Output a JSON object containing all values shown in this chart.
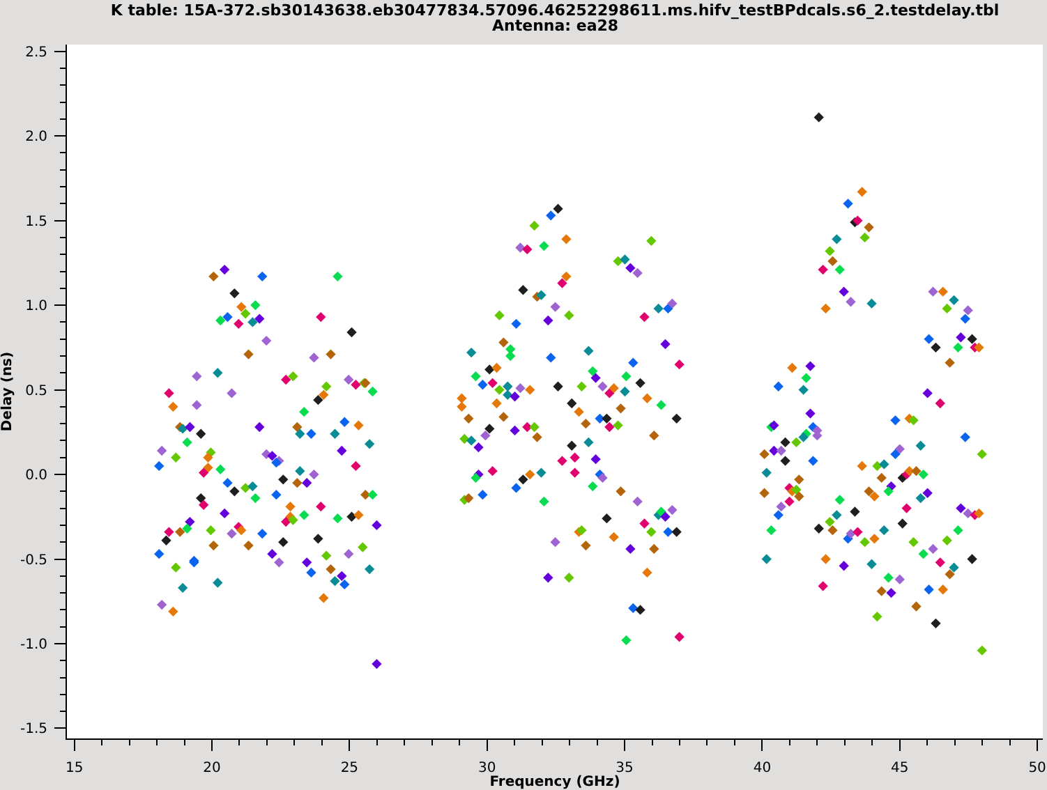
{
  "chart_data": {
    "type": "scatter",
    "title": "K table: 15A-372.sb30143638.eb30477834.57096.46252298611.ms.hifv_testBPdcals.s6_2.testdelay.tbl",
    "subtitle": "Antenna: ea28",
    "xlabel": "Frequency (GHz)",
    "ylabel": "Delay (ns)",
    "marker": "diamond",
    "xlim": [
      14.73,
      50.2
    ],
    "ylim": [
      -1.56,
      2.54
    ],
    "xticks": [
      15,
      {
        "value": 16,
        "label": null
      },
      {
        "value": 17,
        "label": null
      },
      {
        "value": 18,
        "label": null
      },
      {
        "value": 19,
        "label": null
      },
      20,
      {
        "value": 21,
        "label": null
      },
      {
        "value": 22,
        "label": null
      },
      {
        "value": 23,
        "label": null
      },
      {
        "value": 24,
        "label": null
      },
      25,
      {
        "value": 26,
        "label": null
      },
      {
        "value": 27,
        "label": null
      },
      {
        "value": 28,
        "label": null
      },
      {
        "value": 29,
        "label": null
      },
      30,
      {
        "value": 31,
        "label": null
      },
      {
        "value": 32,
        "label": null
      },
      {
        "value": 33,
        "label": null
      },
      {
        "value": 34,
        "label": null
      },
      35,
      {
        "value": 36,
        "label": null
      },
      {
        "value": 37,
        "label": null
      },
      {
        "value": 38,
        "label": null
      },
      {
        "value": 39,
        "label": null
      },
      40,
      {
        "value": 41,
        "label": null
      },
      {
        "value": 42,
        "label": null
      },
      {
        "value": 43,
        "label": null
      },
      {
        "value": 44,
        "label": null
      },
      45,
      {
        "value": 46,
        "label": null
      },
      {
        "value": 47,
        "label": null
      },
      {
        "value": 48,
        "label": null
      },
      {
        "value": 49,
        "label": null
      },
      50
    ],
    "yticks": [
      -1.5,
      {
        "value": -1.4,
        "label": null
      },
      {
        "value": -1.3,
        "label": null
      },
      {
        "value": -1.2,
        "label": null
      },
      {
        "value": -1.1,
        "label": null
      },
      {
        "value": -1,
        "label": "-1.0"
      },
      {
        "value": -0.9,
        "label": null
      },
      {
        "value": -0.8,
        "label": null
      },
      {
        "value": -0.7,
        "label": null
      },
      {
        "value": -0.6,
        "label": null
      },
      -0.5,
      {
        "value": -0.4,
        "label": null
      },
      {
        "value": -0.3,
        "label": null
      },
      {
        "value": -0.2,
        "label": null
      },
      {
        "value": -0.1,
        "label": null
      },
      {
        "value": 0,
        "label": "0.0"
      },
      {
        "value": 0.1,
        "label": null
      },
      {
        "value": 0.2,
        "label": null
      },
      {
        "value": 0.3,
        "label": null
      },
      {
        "value": 0.4,
        "label": null
      },
      0.5,
      {
        "value": 0.6,
        "label": null
      },
      {
        "value": 0.7,
        "label": null
      },
      {
        "value": 0.8,
        "label": null
      },
      {
        "value": 0.9,
        "label": null
      },
      {
        "value": 1,
        "label": "1.0"
      },
      {
        "value": 1.1,
        "label": null
      },
      {
        "value": 1.2,
        "label": null
      },
      {
        "value": 1.3,
        "label": null
      },
      {
        "value": 1.4,
        "label": null
      },
      1.5,
      {
        "value": 1.6,
        "label": null
      },
      {
        "value": 1.7,
        "label": null
      },
      {
        "value": 1.8,
        "label": null
      },
      {
        "value": 1.9,
        "label": null
      },
      {
        "value": 2,
        "label": "2.0"
      },
      {
        "value": 2.1,
        "label": null
      },
      {
        "value": 2.2,
        "label": null
      },
      {
        "value": 2.3,
        "label": null
      },
      {
        "value": 2.4,
        "label": null
      },
      2.5
    ],
    "x": [
      20.06,
      20.46,
      21.83,
      24.57,
      20.82,
      21.07,
      21.58,
      21.22,
      20.31,
      20.57,
      20.97,
      21.48,
      21.73,
      23.96,
      25.08,
      21.98,
      21.33,
      23.71,
      24.32,
      19.45,
      20.21,
      22.69,
      22.95,
      24.16,
      24.97,
      25.23,
      25.53,
      25.58,
      25.84,
      18.44,
      20.72,
      18.59,
      19.45,
      24.06,
      23.86,
      23.35,
      18.84,
      18.94,
      19.2,
      19.6,
      21.73,
      23.1,
      23.2,
      23.61,
      24.47,
      24.82,
      25.33,
      25.73,
      24.72,
      18.18,
      18.08,
      18.69,
      19.1,
      19.96,
      19.86,
      19.86,
      19.7,
      20.31,
      21.98,
      22.19,
      22.44,
      22.34,
      23.2,
      23.71,
      25.23,
      20.57,
      20.82,
      21.22,
      21.48,
      21.58,
      22.59,
      23.1,
      23.45,
      22.34,
      19.6,
      19.7,
      20.46,
      22.85,
      22.85,
      22.69,
      22.95,
      23.35,
      23.96,
      24.57,
      25.08,
      25.33,
      25.58,
      25.84,
      25.99,
      19.2,
      19.1,
      18.84,
      18.44,
      18.34,
      18.08,
      19.96,
      20.06,
      20.97,
      21.07,
      20.72,
      21.33,
      21.83,
      22.59,
      22.19,
      22.44,
      23.86,
      23.45,
      23.61,
      24.16,
      24.32,
      24.72,
      24.47,
      24.82,
      24.97,
      25.48,
      25.73,
      19.35,
      19.35,
      18.69,
      18.94,
      20.21,
      24.06,
      18.18,
      18.59,
      25.99,
      32.58,
      32.32,
      31.72,
      32.88,
      31.21,
      31.46,
      32.07,
      35.97,
      34.76,
      35.01,
      35.21,
      35.47,
      32.88,
      32.73,
      31.31,
      31.82,
      31.97,
      32.48,
      30.45,
      31.06,
      32.22,
      32.98,
      35.72,
      36.23,
      36.58,
      36.73,
      36.48,
      36.99,
      30.6,
      30.85,
      30.85,
      29.43,
      32.32,
      33.69,
      35.31,
      30.09,
      30.35,
      29.59,
      29.84,
      30.2,
      30.75,
      30.45,
      30.75,
      31.01,
      31.21,
      31.56,
      29.08,
      29.08,
      30.35,
      29.33,
      30.6,
      32.58,
      33.84,
      33.95,
      33.44,
      34.2,
      34.45,
      34.61,
      35.06,
      35.01,
      35.57,
      35.82,
      36.33,
      36.89,
      36.07,
      34.86,
      33.08,
      33.34,
      33.59,
      34.1,
      34.35,
      34.76,
      34.45,
      30.09,
      31.46,
      31.72,
      31.01,
      31.82,
      29.18,
      29.43,
      29.94,
      29.69,
      33.08,
      33.69,
      32.73,
      33.19,
      33.19,
      33.95,
      34.1,
      34.2,
      33.84,
      34.86,
      35.47,
      29.69,
      29.59,
      30.2,
      31.31,
      31.56,
      31.97,
      31.06,
      29.84,
      29.18,
      29.33,
      32.07,
      34.35,
      34.61,
      33.34,
      33.44,
      33.59,
      32.48,
      35.21,
      35.72,
      35.97,
      36.23,
      36.33,
      36.48,
      36.73,
      36.58,
      36.89,
      36.07,
      35.82,
      32.22,
      32.98,
      35.31,
      35.57,
      35.06,
      36.99,
      42.06,
      43.63,
      43.12,
      43.37,
      43.47,
      43.88,
      43.73,
      42.71,
      42.46,
      42.56,
      42.21,
      42.82,
      42.97,
      43.22,
      42.31,
      43.98,
      41.09,
      41.75,
      41.6,
      40.59,
      41.5,
      41.75,
      40.33,
      40.43,
      41.85,
      42.0,
      41.6,
      41.5,
      42.0,
      41.24,
      40.84,
      40.08,
      40.43,
      40.69,
      40.84,
      41.85,
      40.16,
      41.34,
      40.08,
      40.99,
      41.09,
      41.24,
      41.34,
      40.99,
      40.69,
      40.59,
      40.33,
      40.16,
      42.06,
      42.31,
      42.21,
      42.46,
      42.56,
      42.71,
      42.82,
      43.37,
      43.12,
      43.22,
      43.47,
      43.73,
      42.97,
      43.98,
      43.63,
      43.88,
      44.08,
      44.08,
      44.18,
      44.18,
      46.21,
      46.57,
      46.97,
      46.72,
      47.48,
      47.38,
      46.06,
      46.31,
      47.22,
      47.63,
      47.12,
      47.73,
      47.88,
      46.82,
      46.01,
      46.47,
      44.84,
      45.35,
      45.5,
      47.38,
      47.99,
      45.0,
      45.76,
      44.84,
      44.43,
      44.34,
      44.69,
      44.59,
      45.1,
      45.25,
      45.35,
      45.6,
      45.86,
      46.01,
      45.76,
      45.25,
      45.1,
      44.43,
      45.5,
      45.86,
      46.21,
      46.72,
      46.47,
      46.97,
      46.82,
      47.22,
      47.48,
      47.73,
      47.88,
      47.12,
      47.63,
      44.59,
      45.0,
      44.34,
      44.69,
      46.06,
      46.57,
      45.6,
      46.31,
      47.99
    ],
    "values": [
      1.17,
      1.21,
      1.17,
      1.17,
      1.07,
      0.99,
      1.0,
      0.95,
      0.91,
      0.93,
      0.89,
      0.9,
      0.92,
      0.93,
      0.84,
      0.79,
      0.71,
      0.69,
      0.71,
      0.58,
      0.6,
      0.56,
      0.58,
      0.52,
      0.56,
      0.53,
      0.54,
      0.54,
      0.49,
      0.48,
      0.48,
      0.4,
      0.41,
      0.47,
      0.44,
      0.37,
      0.28,
      0.27,
      0.28,
      0.24,
      0.28,
      0.28,
      0.24,
      0.24,
      0.24,
      0.31,
      0.29,
      0.18,
      0.14,
      0.14,
      0.05,
      0.1,
      0.19,
      0.13,
      0.1,
      0.04,
      0.01,
      0.03,
      0.12,
      0.11,
      0.08,
      0.07,
      0.02,
      0.0,
      0.05,
      -0.05,
      -0.1,
      -0.08,
      -0.07,
      -0.14,
      -0.03,
      -0.05,
      -0.05,
      -0.12,
      -0.14,
      -0.18,
      -0.23,
      -0.19,
      -0.25,
      -0.28,
      -0.27,
      -0.24,
      -0.19,
      -0.26,
      -0.25,
      -0.24,
      -0.12,
      -0.12,
      -0.3,
      -0.28,
      -0.32,
      -0.34,
      -0.34,
      -0.39,
      -0.47,
      -0.33,
      -0.42,
      -0.31,
      -0.33,
      -0.35,
      -0.42,
      -0.35,
      -0.4,
      -0.47,
      -0.52,
      -0.38,
      -0.52,
      -0.58,
      -0.48,
      -0.56,
      -0.6,
      -0.63,
      -0.65,
      -0.47,
      -0.43,
      -0.56,
      -0.51,
      -0.52,
      -0.55,
      -0.67,
      -0.64,
      -0.73,
      -0.77,
      -0.81,
      -1.12,
      1.57,
      1.53,
      1.47,
      1.39,
      1.34,
      1.33,
      1.35,
      1.38,
      1.26,
      1.27,
      1.22,
      1.19,
      1.17,
      1.13,
      1.09,
      1.05,
      1.06,
      0.99,
      0.94,
      0.89,
      0.91,
      0.94,
      0.93,
      0.98,
      0.98,
      1.01,
      0.77,
      0.65,
      0.78,
      0.74,
      0.7,
      0.72,
      0.69,
      0.73,
      0.66,
      0.62,
      0.63,
      0.58,
      0.53,
      0.54,
      0.52,
      0.5,
      0.47,
      0.46,
      0.51,
      0.5,
      0.45,
      0.4,
      0.42,
      0.33,
      0.34,
      0.52,
      0.61,
      0.57,
      0.52,
      0.52,
      0.48,
      0.51,
      0.58,
      0.49,
      0.54,
      0.45,
      0.41,
      0.33,
      0.23,
      0.39,
      0.42,
      0.37,
      0.3,
      0.33,
      0.33,
      0.29,
      0.28,
      0.27,
      0.28,
      0.28,
      0.26,
      0.22,
      0.21,
      0.2,
      0.23,
      0.16,
      0.17,
      0.19,
      0.08,
      0.1,
      0.01,
      0.09,
      0.0,
      -0.02,
      -0.07,
      -0.1,
      -0.16,
      0.0,
      -0.02,
      0.02,
      -0.03,
      0.0,
      0.01,
      -0.08,
      -0.12,
      -0.15,
      -0.14,
      -0.16,
      -0.26,
      -0.37,
      -0.34,
      -0.33,
      -0.42,
      -0.4,
      -0.44,
      -0.29,
      -0.34,
      -0.24,
      -0.22,
      -0.25,
      -0.21,
      -0.34,
      -0.34,
      -0.44,
      -0.58,
      -0.61,
      -0.61,
      -0.79,
      -0.8,
      -0.98,
      -0.96,
      2.11,
      1.67,
      1.6,
      1.49,
      1.5,
      1.46,
      1.4,
      1.39,
      1.32,
      1.26,
      1.21,
      1.21,
      1.08,
      1.02,
      0.98,
      1.01,
      0.63,
      0.64,
      0.57,
      0.52,
      0.5,
      0.36,
      0.28,
      0.29,
      0.28,
      0.26,
      0.24,
      0.22,
      0.23,
      0.19,
      0.19,
      0.12,
      0.14,
      0.14,
      0.08,
      0.08,
      0.01,
      -0.03,
      -0.11,
      -0.08,
      -0.1,
      -0.09,
      -0.13,
      -0.16,
      -0.19,
      -0.24,
      -0.33,
      -0.5,
      -0.32,
      -0.5,
      -0.66,
      -0.28,
      -0.33,
      -0.24,
      -0.15,
      -0.22,
      -0.38,
      -0.35,
      -0.34,
      -0.4,
      -0.54,
      -0.53,
      0.05,
      -0.1,
      -0.13,
      -0.38,
      0.05,
      -0.84,
      1.08,
      1.08,
      1.03,
      0.98,
      0.97,
      0.92,
      0.8,
      0.75,
      0.81,
      0.8,
      0.75,
      0.75,
      0.75,
      0.66,
      0.48,
      0.42,
      0.32,
      0.33,
      0.32,
      0.22,
      0.12,
      0.15,
      0.17,
      0.12,
      0.06,
      -0.02,
      -0.07,
      -0.1,
      -0.02,
      0.0,
      0.02,
      0.02,
      0.0,
      -0.11,
      -0.14,
      -0.2,
      -0.29,
      -0.33,
      -0.4,
      -0.47,
      -0.44,
      -0.39,
      -0.52,
      -0.55,
      -0.59,
      -0.2,
      -0.23,
      -0.24,
      -0.23,
      -0.33,
      -0.5,
      -0.61,
      -0.62,
      -0.69,
      -0.7,
      -0.68,
      -0.68,
      -0.78,
      -0.88,
      -1.04
    ],
    "colors": [
      "#b4640a",
      "#6400dc",
      "#0a64f0",
      "#0adc50",
      "#1e1e1e",
      "#e6780a",
      "#0adc50",
      "#64c800",
      "#0adc50",
      "#0a64f0",
      "#e0006e",
      "#0a8c96",
      "#6400dc",
      "#e0006e",
      "#1e1e1e",
      "#a064d2",
      "#b4640a",
      "#a064d2",
      "#b4640a",
      "#a064d2",
      "#0a8c96",
      "#e0006e",
      "#64c800",
      "#64c800",
      "#a064d2",
      "#e0006e",
      "#64c800",
      "#b4640a",
      "#0adc50",
      "#e0006e",
      "#a064d2",
      "#e6780a",
      "#a064d2",
      "#e6780a",
      "#1e1e1e",
      "#0adc50",
      "#b4640a",
      "#0a8c96",
      "#6400dc",
      "#1e1e1e",
      "#6400dc",
      "#b4640a",
      "#0a8c96",
      "#0a64f0",
      "#0a8c96",
      "#0a64f0",
      "#e6780a",
      "#0a8c96",
      "#6400dc",
      "#a064d2",
      "#0a64f0",
      "#64c800",
      "#0adc50",
      "#64c800",
      "#e6780a",
      "#e6780a",
      "#e0006e",
      "#0adc50",
      "#a064d2",
      "#6400dc",
      "#a064d2",
      "#0a64f0",
      "#0a8c96",
      "#a064d2",
      "#e0006e",
      "#0a64f0",
      "#1e1e1e",
      "#64c800",
      "#0a8c96",
      "#0adc50",
      "#1e1e1e",
      "#b4640a",
      "#6400dc",
      "#0a64f0",
      "#1e1e1e",
      "#e0006e",
      "#6400dc",
      "#e6780a",
      "#e6780a",
      "#e0006e",
      "#64c800",
      "#0adc50",
      "#e0006e",
      "#0adc50",
      "#1e1e1e",
      "#e6780a",
      "#b4640a",
      "#0adc50",
      "#6400dc",
      "#6400dc",
      "#0adc50",
      "#b4640a",
      "#e0006e",
      "#1e1e1e",
      "#0a64f0",
      "#64c800",
      "#b4640a",
      "#e0006e",
      "#e6780a",
      "#a064d2",
      "#b4640a",
      "#0a64f0",
      "#1e1e1e",
      "#6400dc",
      "#a064d2",
      "#1e1e1e",
      "#6400dc",
      "#0a64f0",
      "#64c800",
      "#b4640a",
      "#6400dc",
      "#0a8c96",
      "#0a64f0",
      "#a064d2",
      "#64c800",
      "#0a8c96",
      "#0a64f0",
      "#0a64f0",
      "#64c800",
      "#0a8c96",
      "#0a8c96",
      "#e6780a",
      "#a064d2",
      "#e6780a",
      "#6400dc",
      "#1e1e1e",
      "#0a64f0",
      "#64c800",
      "#e6780a",
      "#a064d2",
      "#e0006e",
      "#0adc50",
      "#64c800",
      "#64c800",
      "#0a8c96",
      "#6400dc",
      "#a064d2",
      "#e6780a",
      "#e0006e",
      "#1e1e1e",
      "#b4640a",
      "#0a8c96",
      "#a064d2",
      "#64c800",
      "#0a64f0",
      "#6400dc",
      "#64c800",
      "#e0006e",
      "#0a8c96",
      "#0a64f0",
      "#a064d2",
      "#6400dc",
      "#e0006e",
      "#b4640a",
      "#0adc50",
      "#0adc50",
      "#0a8c96",
      "#0a64f0",
      "#0a8c96",
      "#0a64f0",
      "#1e1e1e",
      "#e6780a",
      "#0adc50",
      "#0a64f0",
      "#e0006e",
      "#0a8c96",
      "#64c800",
      "#0a8c96",
      "#6400dc",
      "#a064d2",
      "#e6780a",
      "#e6780a",
      "#e6780a",
      "#e6780a",
      "#b4640a",
      "#b4640a",
      "#1e1e1e",
      "#0adc50",
      "#6400dc",
      "#64c800",
      "#a064d2",
      "#e0006e",
      "#e6780a",
      "#0adc50",
      "#0a8c96",
      "#1e1e1e",
      "#e6780a",
      "#0adc50",
      "#1e1e1e",
      "#b4640a",
      "#b4640a",
      "#1e1e1e",
      "#e6780a",
      "#b4640a",
      "#0a64f0",
      "#1e1e1e",
      "#64c800",
      "#e0006e",
      "#1e1e1e",
      "#e0006e",
      "#64c800",
      "#6400dc",
      "#b4640a",
      "#64c800",
      "#0a8c96",
      "#a064d2",
      "#6400dc",
      "#1e1e1e",
      "#0a8c96",
      "#e0006e",
      "#e0006e",
      "#e0006e",
      "#6400dc",
      "#0a64f0",
      "#a064d2",
      "#0adc50",
      "#b4640a",
      "#a064d2",
      "#6400dc",
      "#0adc50",
      "#e0006e",
      "#1e1e1e",
      "#e6780a",
      "#0a8c96",
      "#0a64f0",
      "#0a64f0",
      "#64c800",
      "#b4640a",
      "#0adc50",
      "#1e1e1e",
      "#e6780a",
      "#e6780a",
      "#64c800",
      "#b4640a",
      "#a064d2",
      "#6400dc",
      "#e0006e",
      "#64c800",
      "#0a8c96",
      "#0adc50",
      "#6400dc",
      "#a064d2",
      "#0a64f0",
      "#1e1e1e",
      "#b4640a",
      "#e6780a",
      "#6400dc",
      "#64c800",
      "#0a64f0",
      "#1e1e1e",
      "#0adc50",
      "#e0006e",
      "#1e1e1e",
      "#e6780a",
      "#0a64f0",
      "#1e1e1e",
      "#e0006e",
      "#b4640a",
      "#64c800",
      "#0a8c96",
      "#64c800",
      "#b4640a",
      "#e0006e",
      "#0adc50",
      "#6400dc",
      "#a064d2",
      "#e6780a",
      "#0a8c96",
      "#e6780a",
      "#6400dc",
      "#0adc50",
      "#0a64f0",
      "#0a8c96",
      "#6400dc",
      "#0adc50",
      "#6400dc",
      "#0a64f0",
      "#a064d2",
      "#0adc50",
      "#0a8c96",
      "#a064d2",
      "#64c800",
      "#1e1e1e",
      "#b4640a",
      "#6400dc",
      "#a064d2",
      "#1e1e1e",
      "#0a64f0",
      "#0a8c96",
      "#b4640a",
      "#b4640a",
      "#e0006e",
      "#e6780a",
      "#64c800",
      "#b4640a",
      "#e0006e",
      "#a064d2",
      "#0a64f0",
      "#0adc50",
      "#0a8c96",
      "#1e1e1e",
      "#e6780a",
      "#e0006e",
      "#64c800",
      "#b4640a",
      "#0a8c96",
      "#0adc50",
      "#1e1e1e",
      "#0a64f0",
      "#a064d2",
      "#e0006e",
      "#64c800",
      "#6400dc",
      "#0a8c96",
      "#e6780a",
      "#b4640a",
      "#e6780a",
      "#e6780a",
      "#64c800",
      "#64c800",
      "#a064d2",
      "#e6780a",
      "#0a8c96",
      "#64c800",
      "#a064d2",
      "#0a64f0",
      "#0a64f0",
      "#1e1e1e",
      "#6400dc",
      "#1e1e1e",
      "#0adc50",
      "#e0006e",
      "#e6780a",
      "#b4640a",
      "#6400dc",
      "#e0006e",
      "#0a64f0",
      "#e6780a",
      "#64c800",
      "#0a64f0",
      "#64c800",
      "#a064d2",
      "#0a8c96",
      "#0a64f0",
      "#0a8c96",
      "#b4640a",
      "#6400dc",
      "#0adc50",
      "#1e1e1e",
      "#e0006e",
      "#e6780a",
      "#b4640a",
      "#0adc50",
      "#6400dc",
      "#0a8c96",
      "#e0006e",
      "#1e1e1e",
      "#0a8c96",
      "#64c800",
      "#0adc50",
      "#a064d2",
      "#64c800",
      "#e0006e",
      "#0a8c96",
      "#b4640a",
      "#6400dc",
      "#a064d2",
      "#e0006e",
      "#e6780a",
      "#0adc50",
      "#1e1e1e",
      "#0adc50",
      "#a064d2",
      "#b4640a",
      "#6400dc",
      "#0a64f0",
      "#e6780a",
      "#b4640a",
      "#1e1e1e",
      "#64c800"
    ]
  }
}
